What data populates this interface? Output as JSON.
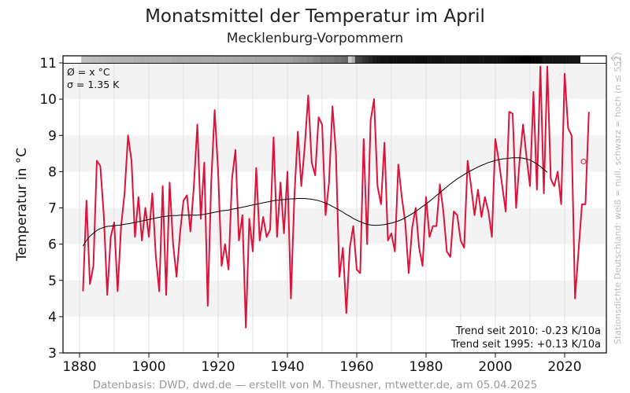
{
  "chart_data": {
    "type": "line",
    "title": "Monatsmittel der Temperatur im April",
    "subtitle": "Mecklenburg-Vorpommern",
    "xlabel": "",
    "ylabel": "Temperatur in °C",
    "xlim": [
      1876,
      2030
    ],
    "ylim": [
      3,
      11
    ],
    "x_ticks": [
      "1880",
      "1900",
      "1920",
      "1940",
      "1960",
      "1980",
      "2000",
      "2020"
    ],
    "y_ticks": [
      "3",
      "4",
      "5",
      "6",
      "7",
      "8",
      "9",
      "10",
      "11"
    ],
    "grid": "horizontal bands and vertical lines every 10 years",
    "stats": {
      "mean": "Ø = x °C",
      "sigma": "σ = 1.35 K"
    },
    "trend_lines": [
      "Trend seit 2010: -0.23 K/10a",
      "Trend seit 1995: +0.13 K/10a"
    ],
    "side_note": "Stationsdichte Deutschland: weiß = null, schwarz = hoch (n ≤ 552)",
    "footer": "Datenbasis: DWD, dwd.de — erstellt von M. Theusner, mtwetter.de, am 05.04.2025",
    "series": [
      {
        "name": "Aprilmittel",
        "color": "#dc143c",
        "x_start": 1881,
        "values": [
          4.7,
          7.2,
          4.9,
          5.4,
          8.3,
          8.15,
          6.8,
          4.6,
          6.2,
          6.6,
          4.7,
          6.5,
          7.4,
          9.0,
          8.3,
          6.2,
          7.3,
          6.1,
          7.0,
          6.2,
          7.4,
          5.7,
          4.7,
          7.6,
          4.6,
          7.7,
          6.0,
          5.1,
          6.3,
          7.2,
          7.35,
          6.35,
          7.6,
          9.3,
          6.7,
          8.25,
          4.3,
          7.7,
          9.7,
          8.0,
          5.4,
          6.0,
          5.3,
          7.8,
          8.6,
          6.1,
          6.8,
          3.7,
          6.7,
          5.8,
          8.1,
          6.1,
          6.75,
          6.2,
          6.4,
          8.95,
          6.2,
          7.7,
          6.3,
          8.0,
          4.5,
          7.3,
          9.1,
          7.6,
          8.7,
          10.1,
          8.25,
          7.9,
          9.5,
          9.3,
          6.8,
          7.7,
          9.8,
          8.5,
          5.1,
          5.9,
          4.1,
          5.9,
          6.5,
          5.3,
          5.2,
          8.9,
          6.0,
          9.4,
          10.0,
          7.6,
          7.1,
          8.8,
          6.1,
          6.3,
          5.8,
          8.2,
          7.3,
          6.6,
          5.2,
          6.45,
          7.0,
          5.9,
          5.4,
          7.3,
          6.2,
          6.5,
          6.5,
          7.65,
          6.9,
          5.8,
          5.65,
          6.9,
          6.8,
          6.1,
          5.9,
          8.3,
          7.6,
          6.8,
          7.5,
          6.75,
          7.3,
          6.9,
          6.2,
          8.9,
          8.3,
          7.6,
          6.9,
          9.65,
          9.6,
          7.0,
          8.3,
          9.3,
          8.4,
          7.6,
          10.2,
          7.5,
          10.9,
          7.4,
          10.9,
          7.8,
          7.6,
          8.0,
          7.1,
          10.7,
          9.2,
          9.0,
          4.5,
          5.8,
          7.1,
          7.1,
          9.65
        ]
      },
      {
        "name": "Gleitendes Mittel",
        "color": "#000000",
        "x_start": 1881,
        "values": [
          5.95,
          6.1,
          6.22,
          6.3,
          6.38,
          6.43,
          6.46,
          6.49,
          6.5,
          6.51,
          6.52,
          6.53,
          6.55,
          6.56,
          6.58,
          6.6,
          6.62,
          6.64,
          6.66,
          6.68,
          6.7,
          6.72,
          6.74,
          6.76,
          6.77,
          6.78,
          6.79,
          6.79,
          6.8,
          6.8,
          6.8,
          6.8,
          6.8,
          6.8,
          6.81,
          6.82,
          6.84,
          6.86,
          6.88,
          6.9,
          6.92,
          6.93,
          6.94,
          6.96,
          6.98,
          7.0,
          7.02,
          7.04,
          7.06,
          7.08,
          7.1,
          7.12,
          7.14,
          7.16,
          7.18,
          7.2,
          7.21,
          7.22,
          7.23,
          7.24,
          7.25,
          7.25,
          7.26,
          7.26,
          7.26,
          7.25,
          7.24,
          7.22,
          7.2,
          7.17,
          7.13,
          7.09,
          7.04,
          6.99,
          6.94,
          6.88,
          6.82,
          6.77,
          6.71,
          6.66,
          6.62,
          6.58,
          6.55,
          6.53,
          6.52,
          6.52,
          6.53,
          6.54,
          6.56,
          6.58,
          6.61,
          6.64,
          6.68,
          6.73,
          6.78,
          6.84,
          6.9,
          6.97,
          7.04,
          7.11,
          7.18,
          7.26,
          7.34,
          7.42,
          7.5,
          7.58,
          7.66,
          7.73,
          7.8,
          7.86,
          7.92,
          7.98,
          8.03,
          8.08,
          8.13,
          8.17,
          8.21,
          8.25,
          8.28,
          8.31,
          8.33,
          8.35,
          8.36,
          8.37,
          8.38,
          8.38,
          8.38,
          8.37,
          8.35,
          8.32,
          8.27,
          8.21,
          8.14,
          8.06,
          7.98
        ]
      }
    ],
    "last_point_marker": {
      "year": 2025,
      "value": 8.28,
      "style": "open circle"
    },
    "station_density_bar": {
      "description": "grayscale strip above plot, white = none, black = high",
      "x_start": 1881,
      "x_end": 2024,
      "levels": [
        0.25,
        0.25,
        0.25,
        0.26,
        0.26,
        0.27,
        0.27,
        0.28,
        0.28,
        0.29,
        0.29,
        0.3,
        0.3,
        0.3,
        0.3,
        0.31,
        0.31,
        0.32,
        0.32,
        0.32,
        0.32,
        0.32,
        0.32,
        0.32,
        0.32,
        0.32,
        0.33,
        0.33,
        0.33,
        0.33,
        0.33,
        0.33,
        0.33,
        0.33,
        0.33,
        0.33,
        0.33,
        0.33,
        0.34,
        0.34,
        0.34,
        0.34,
        0.34,
        0.34,
        0.35,
        0.35,
        0.35,
        0.35,
        0.35,
        0.35,
        0.36,
        0.36,
        0.36,
        0.36,
        0.36,
        0.37,
        0.37,
        0.37,
        0.37,
        0.37,
        0.38,
        0.4,
        0.4,
        0.42,
        0.42,
        0.45,
        0.45,
        0.48,
        0.48,
        0.52,
        0.52,
        0.52,
        0.52,
        0.55,
        0.55,
        0.58,
        0.6,
        0.2,
        0.3,
        0.72,
        0.75,
        0.8,
        0.82,
        0.85,
        0.9,
        0.92,
        0.93,
        0.93,
        0.93,
        0.94,
        0.94,
        0.94,
        0.94,
        0.94,
        0.94,
        0.94,
        0.94,
        0.94,
        0.94,
        0.94,
        0.93,
        0.93,
        0.93,
        0.93,
        0.92,
        0.92,
        0.92,
        0.92,
        0.92,
        0.92,
        0.92,
        0.93,
        0.93,
        0.93,
        0.93,
        0.93,
        0.93,
        0.93,
        0.93,
        0.93,
        0.94,
        0.94,
        0.95,
        0.96,
        0.97,
        0.98,
        0.99,
        1.0,
        1.0,
        1.0,
        0.99,
        0.98,
        0.97,
        0.9,
        0.92,
        0.92,
        0.92,
        0.92,
        0.92,
        0.92,
        0.92,
        0.92,
        0.92,
        0.92
      ]
    }
  }
}
